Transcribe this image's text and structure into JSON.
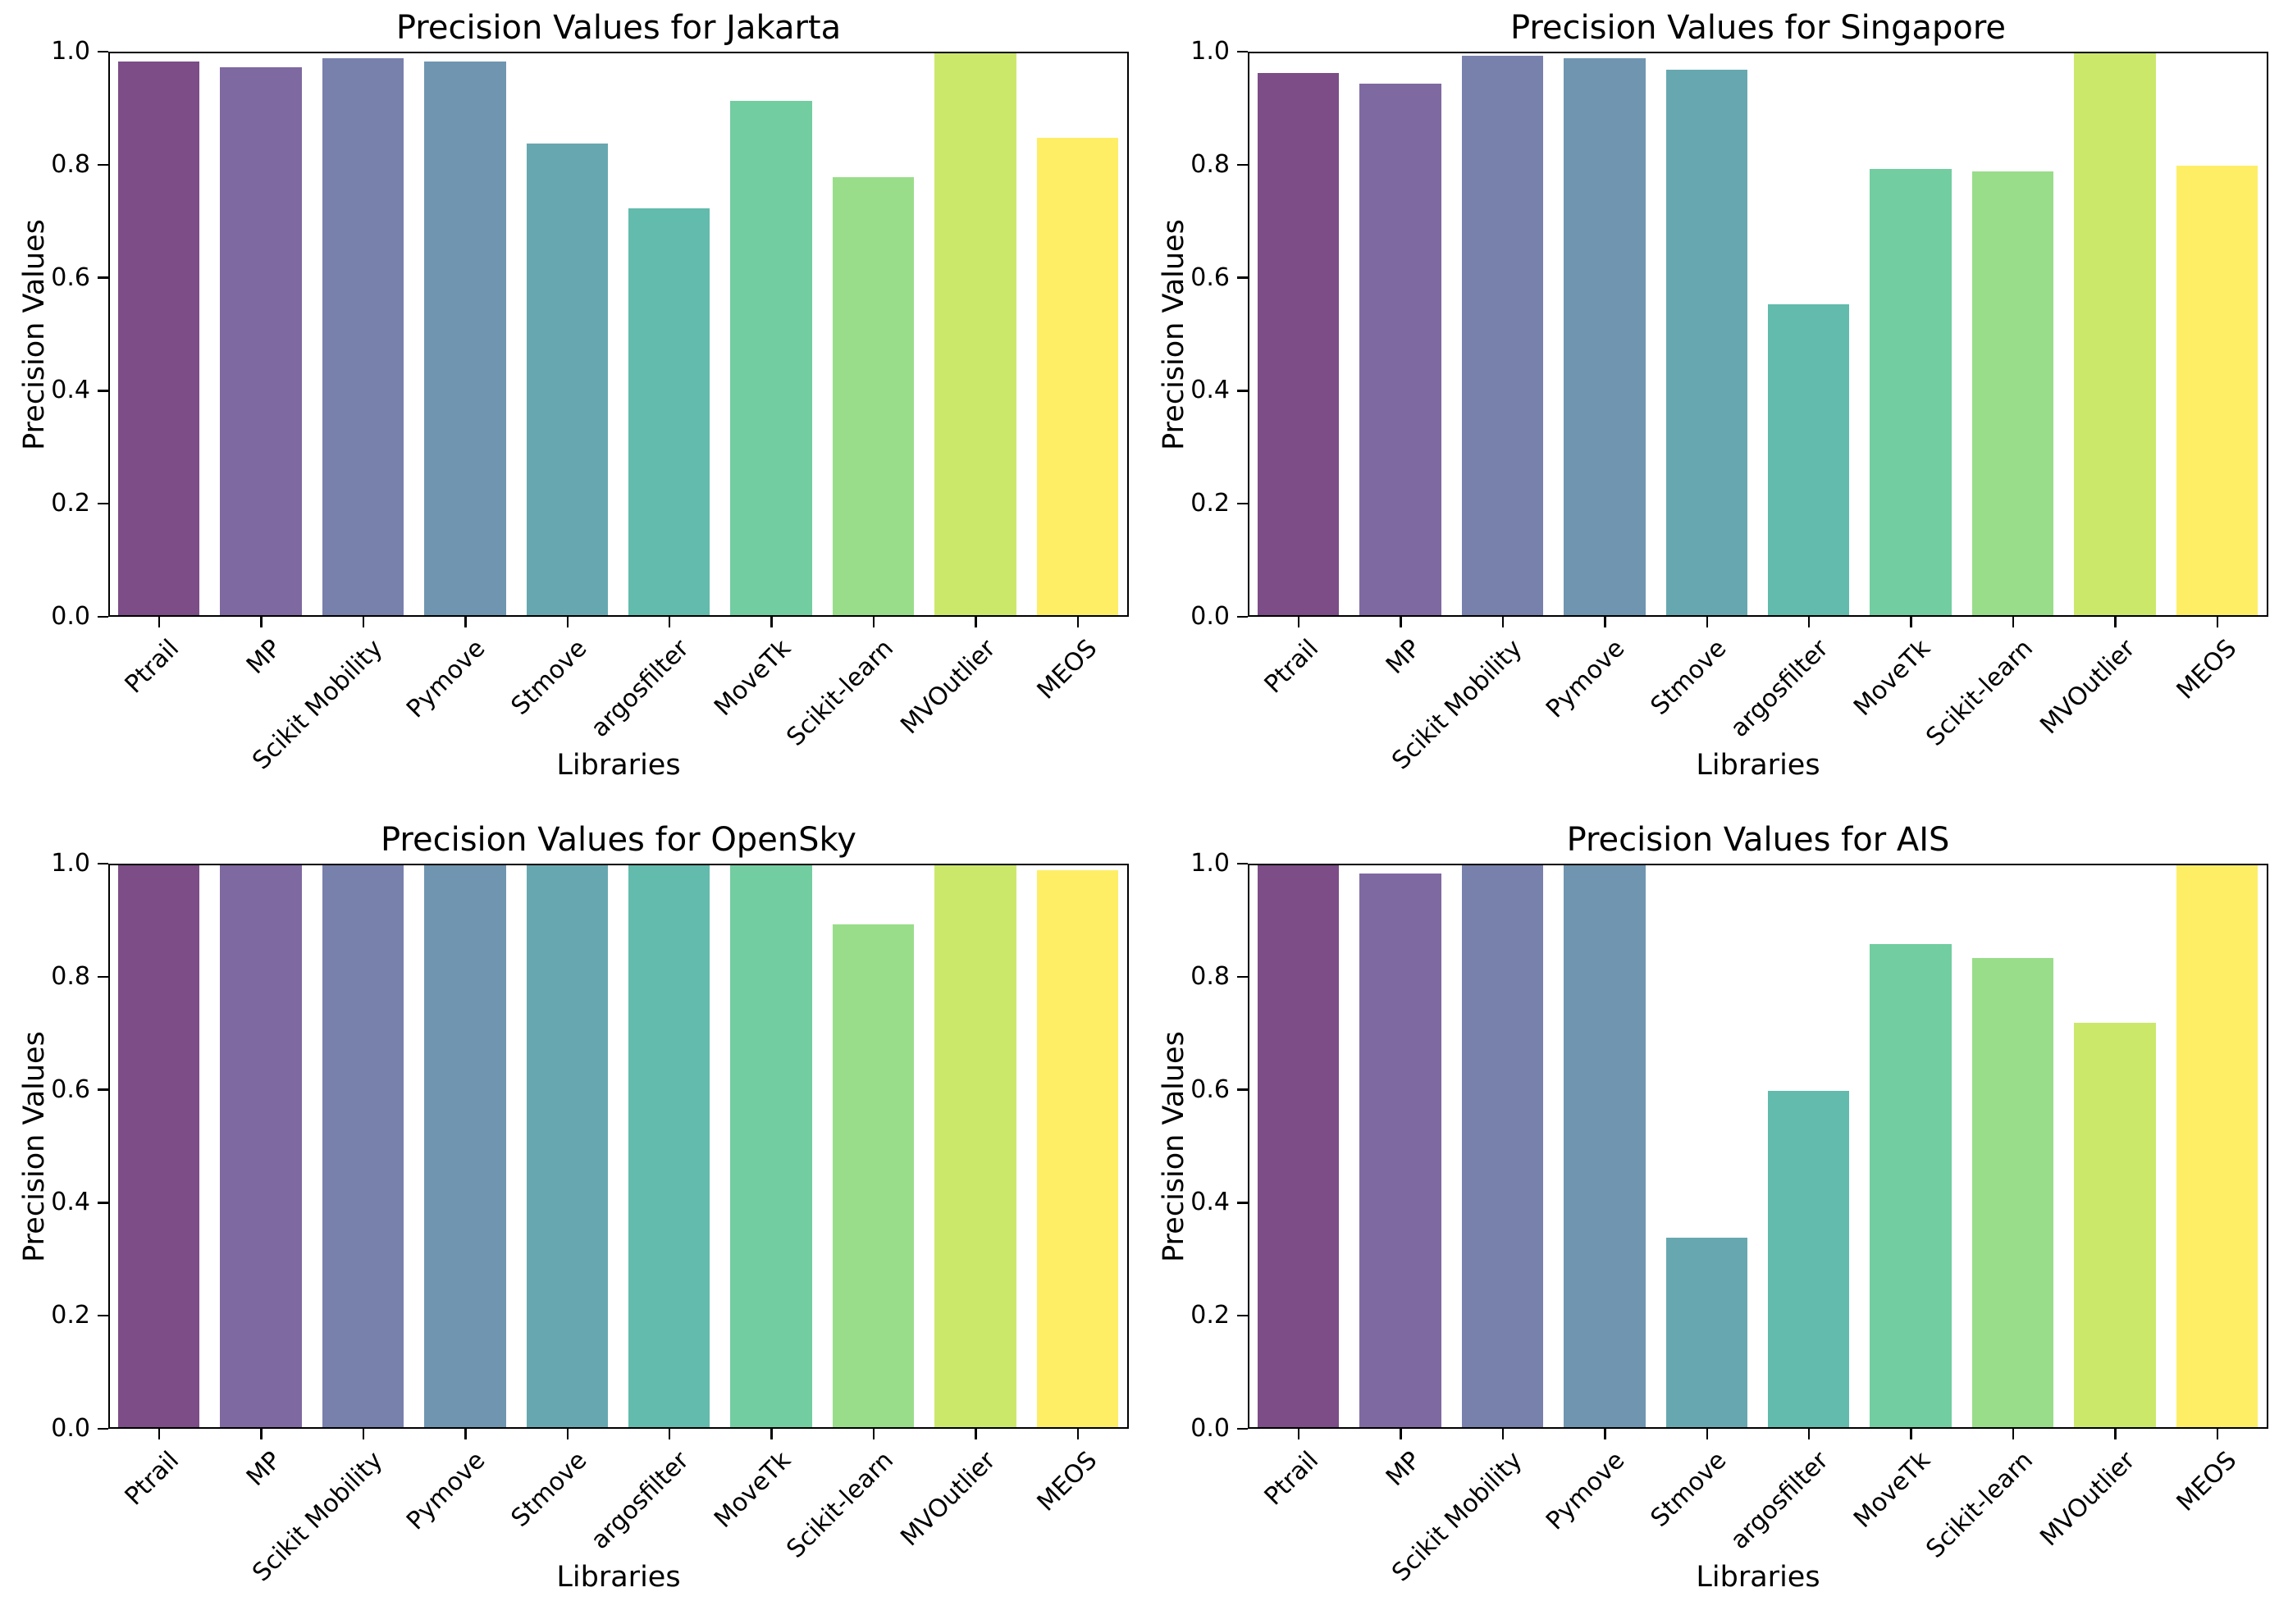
{
  "figure": {
    "background": "#ffffff",
    "axis_color": "#000000"
  },
  "palette": {
    "bar_colors": [
      "#7c4d87",
      "#7f69a1",
      "#7880ac",
      "#6f95b0",
      "#67a8b0",
      "#62bbac",
      "#72cda1",
      "#99dd8a",
      "#cbe86b",
      "#feee66"
    ]
  },
  "axes": {
    "yticks": [
      "0.0",
      "0.2",
      "0.4",
      "0.6",
      "0.8",
      "1.0"
    ],
    "ytick_values": [
      0.0,
      0.2,
      0.4,
      0.6,
      0.8,
      1.0
    ]
  },
  "chart_data": [
    {
      "type": "bar",
      "title": "Precision Values for Jakarta",
      "xlabel": "Libraries",
      "ylabel": "Precision Values",
      "ylim": [
        0.0,
        1.0
      ],
      "grid": false,
      "categories": [
        "Ptrail",
        "MP",
        "Scikit Mobility",
        "Pymove",
        "Stmove",
        "argosfilter",
        "MoveTk",
        "Scikit-learn",
        "MVOutlier",
        "MEOS"
      ],
      "values": [
        0.98,
        0.97,
        0.985,
        0.98,
        0.835,
        0.72,
        0.91,
        0.775,
        1.0,
        0.845
      ]
    },
    {
      "type": "bar",
      "title": "Precision Values for Singapore",
      "xlabel": "Libraries",
      "ylabel": "Precision Values",
      "ylim": [
        0.0,
        1.0
      ],
      "grid": false,
      "categories": [
        "Ptrail",
        "MP",
        "Scikit Mobility",
        "Pymove",
        "Stmove",
        "argosfilter",
        "MoveTk",
        "Scikit-learn",
        "MVOutlier",
        "MEOS"
      ],
      "values": [
        0.96,
        0.94,
        0.99,
        0.985,
        0.965,
        0.55,
        0.79,
        0.785,
        1.0,
        0.795
      ]
    },
    {
      "type": "bar",
      "title": "Precision Values for OpenSky",
      "xlabel": "Libraries",
      "ylabel": "Precision Values",
      "ylim": [
        0.0,
        1.0
      ],
      "grid": false,
      "categories": [
        "Ptrail",
        "MP",
        "Scikit Mobility",
        "Pymove",
        "Stmove",
        "argosfilter",
        "MoveTk",
        "Scikit-learn",
        "MVOutlier",
        "MEOS"
      ],
      "values": [
        1.0,
        0.995,
        0.995,
        0.995,
        1.0,
        1.0,
        1.0,
        0.89,
        1.0,
        0.985
      ]
    },
    {
      "type": "bar",
      "title": "Precision Values for AIS",
      "xlabel": "Libraries",
      "ylabel": "Precision Values",
      "ylim": [
        0.0,
        1.0
      ],
      "grid": false,
      "categories": [
        "Ptrail",
        "MP",
        "Scikit Mobility",
        "Pymove",
        "Stmove",
        "argosfilter",
        "MoveTk",
        "Scikit-learn",
        "MVOutlier",
        "MEOS"
      ],
      "values": [
        1.0,
        0.98,
        0.995,
        1.0,
        0.335,
        0.595,
        0.855,
        0.83,
        0.715,
        1.0
      ]
    }
  ]
}
